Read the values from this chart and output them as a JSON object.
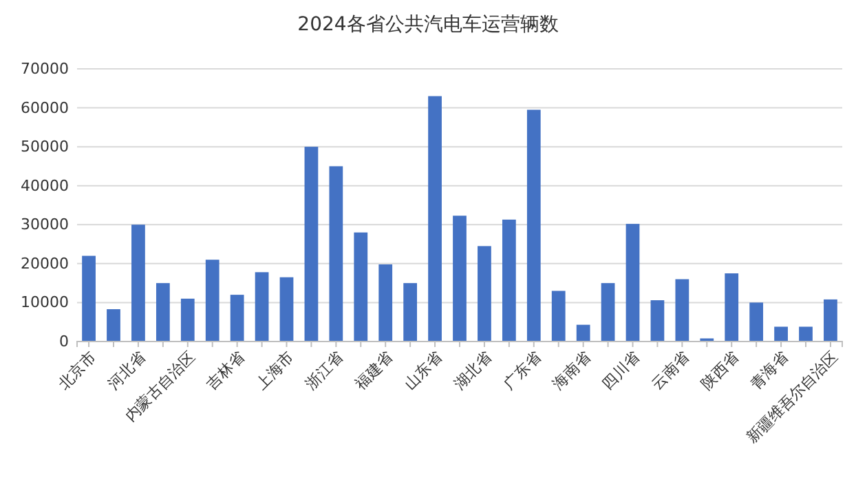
{
  "chart_data": {
    "type": "bar",
    "title": "2024各省公共汽电车运营辆数",
    "categories": [
      "北京市",
      null,
      "河北省",
      null,
      "内蒙古自治区",
      null,
      "吉林省",
      null,
      "上海市",
      null,
      "浙江省",
      null,
      "福建省",
      null,
      "山东省",
      null,
      "湖北省",
      null,
      "广东省",
      null,
      "海南省",
      null,
      "四川省",
      null,
      "云南省",
      null,
      "陕西省",
      null,
      "青海省",
      null,
      "新疆维吾尔自治区"
    ],
    "values": [
      22000,
      8300,
      30000,
      15000,
      11000,
      21000,
      12000,
      17800,
      16500,
      50000,
      45000,
      28000,
      19800,
      15000,
      63000,
      32300,
      24500,
      31300,
      59500,
      13000,
      4300,
      15000,
      30200,
      10600,
      16000,
      800,
      17500,
      10000,
      3800,
      3800,
      10800
    ],
    "color": "#4472c4",
    "ylim": [
      0,
      70000
    ],
    "yticks": [
      0,
      10000,
      20000,
      30000,
      40000,
      50000,
      60000,
      70000
    ],
    "grid": "y"
  }
}
